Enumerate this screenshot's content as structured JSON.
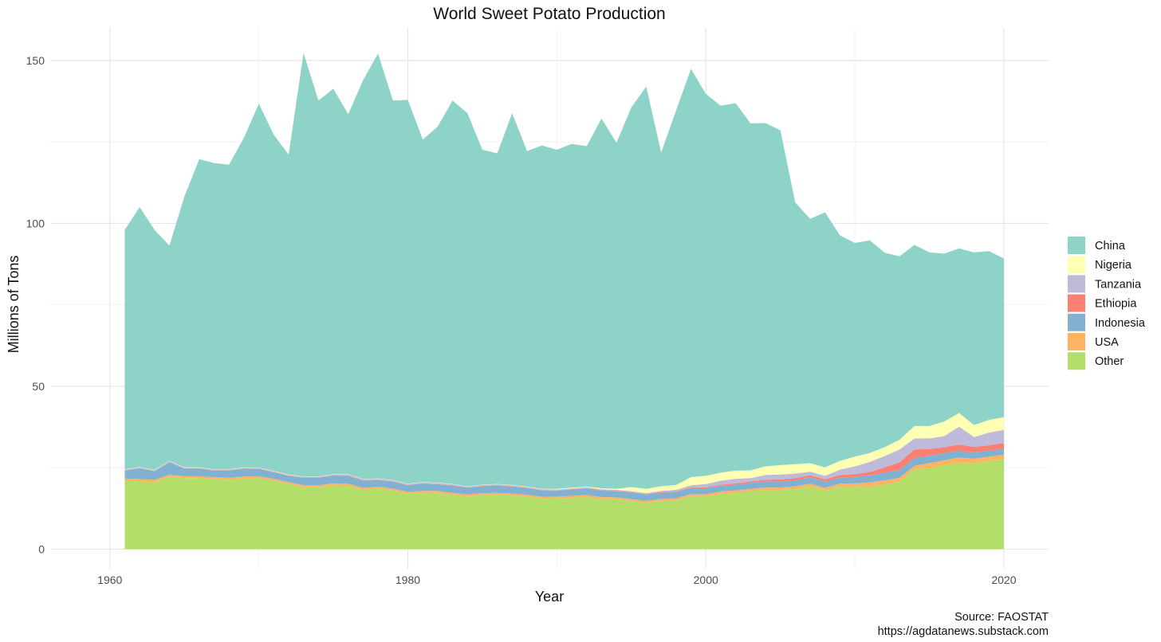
{
  "chart_data": {
    "type": "area",
    "stacked": true,
    "title": "World Sweet Potato Production",
    "xlabel": "Year",
    "ylabel": "Millions of Tons",
    "xlim": [
      1956,
      2023
    ],
    "ylim": [
      -6,
      160
    ],
    "x_ticks": [
      1960,
      1980,
      2000,
      2020
    ],
    "y_ticks": [
      0,
      50,
      100,
      150
    ],
    "grid": true,
    "legend_position": "right",
    "caption": [
      "Source: FAOSTAT",
      "https://agdatanews.substack.com"
    ],
    "x": [
      1961,
      1962,
      1963,
      1964,
      1965,
      1966,
      1967,
      1968,
      1969,
      1970,
      1971,
      1972,
      1973,
      1974,
      1975,
      1976,
      1977,
      1978,
      1979,
      1980,
      1981,
      1982,
      1983,
      1984,
      1985,
      1986,
      1987,
      1988,
      1989,
      1990,
      1991,
      1992,
      1993,
      1994,
      1995,
      1996,
      1997,
      1998,
      1999,
      2000,
      2001,
      2002,
      2003,
      2004,
      2005,
      2006,
      2007,
      2008,
      2009,
      2010,
      2011,
      2012,
      2013,
      2014,
      2015,
      2016,
      2017,
      2018,
      2019,
      2020
    ],
    "series": [
      {
        "name": "Other",
        "color": "#b3de69",
        "values": [
          21.0,
          20.8,
          20.6,
          22.2,
          21.8,
          21.8,
          21.5,
          21.3,
          21.7,
          21.8,
          21.0,
          20.0,
          19.0,
          19.0,
          19.6,
          19.5,
          18.2,
          18.6,
          18.0,
          17.0,
          17.3,
          17.3,
          16.7,
          16.2,
          16.6,
          16.7,
          16.5,
          16.1,
          15.5,
          15.5,
          15.8,
          16.0,
          15.4,
          15.3,
          14.8,
          14.2,
          14.8,
          15.0,
          16.3,
          16.3,
          17.0,
          17.3,
          17.8,
          18.2,
          18.2,
          18.5,
          19.3,
          18.0,
          19.2,
          19.2,
          19.3,
          19.8,
          20.8,
          24.5,
          25.0,
          25.8,
          26.5,
          26.4,
          27.1,
          27.6
        ]
      },
      {
        "name": "USA",
        "color": "#fdb462",
        "values": [
          0.7,
          0.7,
          0.7,
          0.6,
          0.6,
          0.6,
          0.6,
          0.6,
          0.6,
          0.6,
          0.6,
          0.6,
          0.6,
          0.6,
          0.6,
          0.6,
          0.6,
          0.6,
          0.6,
          0.6,
          0.6,
          0.6,
          0.6,
          0.6,
          0.6,
          0.6,
          0.6,
          0.6,
          0.6,
          0.6,
          0.6,
          0.6,
          0.6,
          0.6,
          0.6,
          0.6,
          0.6,
          0.6,
          0.6,
          0.6,
          0.7,
          0.7,
          0.7,
          0.7,
          0.7,
          0.8,
          0.8,
          0.8,
          0.9,
          1.0,
          1.2,
          1.3,
          1.1,
          1.1,
          1.4,
          1.5,
          1.6,
          1.4,
          1.3,
          1.4
        ]
      },
      {
        "name": "Indonesia",
        "color": "#80b1d3",
        "values": [
          2.4,
          3.3,
          2.6,
          3.9,
          2.3,
          2.3,
          2.0,
          2.2,
          2.4,
          2.2,
          2.0,
          1.9,
          2.3,
          2.3,
          2.4,
          2.4,
          2.2,
          2.0,
          2.1,
          2.0,
          2.2,
          2.0,
          2.2,
          2.0,
          2.1,
          2.2,
          2.1,
          2.0,
          1.9,
          1.8,
          1.9,
          2.0,
          2.0,
          1.9,
          2.0,
          2.0,
          1.9,
          1.9,
          1.9,
          1.8,
          1.8,
          1.8,
          1.9,
          1.9,
          1.9,
          1.9,
          1.9,
          1.9,
          1.9,
          2.0,
          2.2,
          2.4,
          2.4,
          2.4,
          2.3,
          2.2,
          2.1,
          1.9,
          1.8,
          1.8
        ]
      },
      {
        "name": "Ethiopia",
        "color": "#fb8072",
        "values": [
          0.1,
          0.1,
          0.1,
          0.1,
          0.1,
          0.1,
          0.1,
          0.1,
          0.1,
          0.1,
          0.1,
          0.1,
          0.1,
          0.1,
          0.1,
          0.1,
          0.1,
          0.1,
          0.1,
          0.1,
          0.1,
          0.1,
          0.1,
          0.1,
          0.1,
          0.1,
          0.1,
          0.1,
          0.1,
          0.1,
          0.1,
          0.1,
          0.1,
          0.1,
          0.1,
          0.1,
          0.2,
          0.2,
          0.2,
          0.3,
          0.3,
          0.4,
          0.4,
          0.5,
          0.6,
          0.6,
          0.7,
          0.7,
          0.8,
          0.8,
          1.0,
          1.6,
          2.4,
          2.6,
          2.0,
          1.8,
          1.9,
          1.7,
          1.7,
          1.8
        ]
      },
      {
        "name": "Tanzania",
        "color": "#bebada",
        "values": [
          0.2,
          0.2,
          0.2,
          0.2,
          0.2,
          0.2,
          0.2,
          0.2,
          0.2,
          0.2,
          0.2,
          0.2,
          0.2,
          0.2,
          0.2,
          0.3,
          0.3,
          0.3,
          0.3,
          0.3,
          0.3,
          0.3,
          0.3,
          0.3,
          0.3,
          0.3,
          0.3,
          0.3,
          0.3,
          0.3,
          0.3,
          0.3,
          0.3,
          0.3,
          0.3,
          0.3,
          0.4,
          0.5,
          0.6,
          1.0,
          1.2,
          1.4,
          1.0,
          1.5,
          1.5,
          1.4,
          1.1,
          1.1,
          1.6,
          2.4,
          3.1,
          3.5,
          3.9,
          3.4,
          3.3,
          3.4,
          5.5,
          3.0,
          3.9,
          4.0
        ]
      },
      {
        "name": "Nigeria",
        "color": "#ffffb3",
        "values": [
          0.1,
          0.1,
          0.1,
          0.1,
          0.1,
          0.1,
          0.1,
          0.1,
          0.1,
          0.1,
          0.1,
          0.1,
          0.1,
          0.1,
          0.1,
          0.1,
          0.1,
          0.1,
          0.1,
          0.1,
          0.1,
          0.1,
          0.1,
          0.1,
          0.1,
          0.1,
          0.1,
          0.1,
          0.1,
          0.2,
          0.2,
          0.2,
          0.3,
          0.3,
          1.3,
          1.3,
          1.4,
          1.5,
          2.5,
          2.5,
          2.5,
          2.5,
          2.4,
          2.6,
          2.9,
          2.9,
          2.6,
          2.6,
          2.7,
          3.0,
          2.7,
          2.7,
          3.0,
          3.8,
          3.8,
          4.5,
          4.2,
          3.7,
          3.9,
          3.9
        ]
      },
      {
        "name": "China",
        "color": "#8dd3c7",
        "values": [
          73.5,
          79.8,
          73.7,
          66.1,
          83.1,
          94.6,
          94.0,
          93.5,
          101.2,
          111.7,
          103.2,
          98.2,
          130.0,
          115.4,
          118.3,
          110.5,
          122.5,
          130.4,
          116.5,
          117.8,
          105.1,
          109.3,
          117.7,
          114.5,
          102.8,
          101.5,
          114.1,
          103.0,
          105.4,
          104.1,
          105.5,
          104.5,
          113.5,
          106.2,
          116.5,
          123.5,
          102.4,
          114.9,
          125.3,
          117.2,
          112.6,
          112.8,
          106.5,
          105.4,
          102.8,
          80.3,
          75.0,
          78.3,
          69.2,
          65.6,
          65.3,
          59.7,
          56.3,
          55.6,
          53.3,
          51.5,
          50.5,
          53.0,
          51.8,
          48.7
        ]
      }
    ]
  }
}
